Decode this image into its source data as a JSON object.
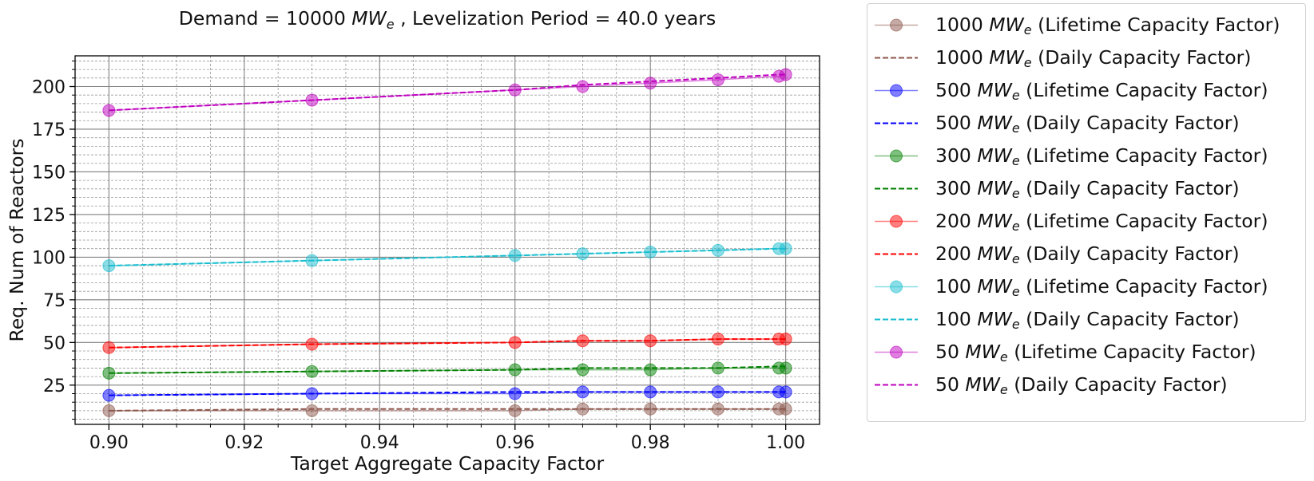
{
  "chart_data": {
    "type": "line",
    "title_parts": [
      "Demand  = 10000 ",
      "MW",
      "e",
      " , Levelization Period = 40.0 years"
    ],
    "xlabel": "Target Aggregate Capacity Factor",
    "ylabel": "Req. Num of Reactors",
    "xlim": [
      0.895,
      1.005
    ],
    "ylim": [
      2,
      218
    ],
    "x_ticks": [
      0.9,
      0.92,
      0.94,
      0.96,
      0.98,
      1.0
    ],
    "x_tick_labels": [
      "0.90",
      "0.92",
      "0.94",
      "0.96",
      "0.98",
      "1.00"
    ],
    "y_ticks": [
      25,
      50,
      75,
      100,
      125,
      150,
      175,
      200
    ],
    "y_tick_labels": [
      "25",
      "50",
      "75",
      "100",
      "125",
      "150",
      "175",
      "200"
    ],
    "grid": true,
    "legend_position": "outside-right",
    "x": [
      0.9,
      0.93,
      0.96,
      0.97,
      0.98,
      0.99,
      0.999,
      1.0
    ],
    "series": [
      {
        "name_prefix": "1000 ",
        "name_suffix": " (Lifetime Capacity Factor)",
        "color": "#8c564b",
        "style": "solid-marker",
        "values": [
          10,
          10,
          10,
          11,
          11,
          11,
          11,
          11
        ]
      },
      {
        "name_prefix": "1000 ",
        "name_suffix": " (Daily Capacity Factor)",
        "color": "#8c564b",
        "style": "dashed",
        "values": [
          10,
          11,
          11,
          11,
          11,
          11,
          11,
          11
        ]
      },
      {
        "name_prefix": "500 ",
        "name_suffix": " (Lifetime Capacity Factor)",
        "color": "#0000ff",
        "style": "solid-marker",
        "values": [
          19,
          20,
          20,
          21,
          21,
          21,
          21,
          21
        ]
      },
      {
        "name_prefix": "500 ",
        "name_suffix": " (Daily Capacity Factor)",
        "color": "#0000ff",
        "style": "dashed",
        "values": [
          19,
          20,
          21,
          21,
          21,
          21,
          21,
          21
        ]
      },
      {
        "name_prefix": "300 ",
        "name_suffix": " (Lifetime Capacity Factor)",
        "color": "#008000",
        "style": "solid-marker",
        "values": [
          32,
          33,
          34,
          34,
          34,
          35,
          35,
          35
        ]
      },
      {
        "name_prefix": "300 ",
        "name_suffix": " (Daily Capacity Factor)",
        "color": "#008000",
        "style": "dashed",
        "values": [
          32,
          33,
          34,
          35,
          35,
          35,
          36,
          36
        ]
      },
      {
        "name_prefix": "200 ",
        "name_suffix": " (Lifetime Capacity Factor)",
        "color": "#ff0000",
        "style": "solid-marker",
        "values": [
          47,
          49,
          50,
          51,
          51,
          52,
          52,
          52
        ]
      },
      {
        "name_prefix": "200 ",
        "name_suffix": " (Daily Capacity Factor)",
        "color": "#ff0000",
        "style": "dashed",
        "values": [
          47,
          49,
          50,
          51,
          51,
          52,
          52,
          52
        ]
      },
      {
        "name_prefix": "100 ",
        "name_suffix": " (Lifetime Capacity Factor)",
        "color": "#17becf",
        "style": "solid-marker",
        "values": [
          95,
          98,
          101,
          102,
          103,
          104,
          105,
          105
        ]
      },
      {
        "name_prefix": "100 ",
        "name_suffix": " (Daily Capacity Factor)",
        "color": "#17becf",
        "style": "dashed",
        "values": [
          95,
          98,
          101,
          102,
          103,
          104,
          105,
          105
        ]
      },
      {
        "name_prefix": "50 ",
        "name_suffix": " (Lifetime Capacity Factor)",
        "color": "#bf00bf",
        "style": "solid-marker",
        "values": [
          186,
          192,
          198,
          200,
          202,
          204,
          206,
          207
        ]
      },
      {
        "name_prefix": "50 ",
        "name_suffix": " (Daily Capacity Factor)",
        "color": "#bf00bf",
        "style": "dashed",
        "values": [
          186,
          192,
          198,
          201,
          203,
          205,
          207,
          207
        ]
      }
    ],
    "unit_main": "MW",
    "unit_sub": "e"
  }
}
